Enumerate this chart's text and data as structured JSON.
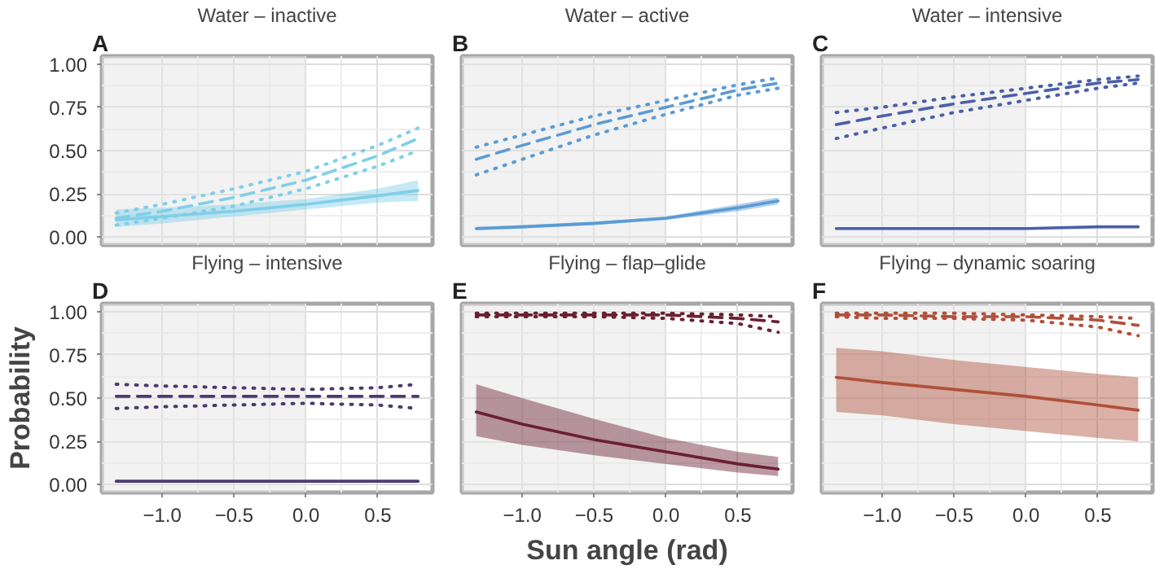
{
  "chart_data": [
    {
      "type": "line",
      "title": "Water – inactive",
      "annotations": [
        "A"
      ],
      "x": [
        -1.32,
        -1.0,
        -0.5,
        0,
        0.5,
        0.78
      ],
      "xlim": [
        -1.42,
        0.88
      ],
      "ylim": [
        -0.045,
        1.045
      ],
      "xticks": [
        -1,
        -0.5,
        0,
        0.5
      ],
      "yticks": [
        {
          "value": 0,
          "label": "0.00"
        },
        {
          "value": 0.25,
          "label": "0.25"
        },
        {
          "value": 0.5,
          "label": "0.50"
        },
        {
          "value": 0.75,
          "label": "0.75"
        },
        {
          "value": 1,
          "label": "1.00"
        }
      ],
      "tick_labels": "y",
      "grid": true,
      "bands": [
        {
          "axis": "x",
          "from": -1.42,
          "to": 0,
          "color": "#e6e6e6"
        }
      ],
      "series": [
        {
          "color": "#7fcfe8",
          "line_style": "solid",
          "values": [
            0.1,
            0.12,
            0.15,
            0.19,
            0.24,
            0.27
          ],
          "lower": [
            0.06,
            0.08,
            0.12,
            0.16,
            0.2,
            0.21
          ],
          "upper": [
            0.16,
            0.17,
            0.19,
            0.22,
            0.28,
            0.33
          ]
        },
        {
          "color": "#7fcfe8",
          "line_style": "dashed",
          "values": [
            0.11,
            0.15,
            0.23,
            0.33,
            0.47,
            0.57
          ]
        },
        {
          "color": "#7fcfe8",
          "line_style": "dotted",
          "values": [
            0.14,
            0.19,
            0.28,
            0.38,
            0.53,
            0.63
          ]
        },
        {
          "color": "#7fcfe8",
          "line_style": "dotted",
          "values": [
            0.07,
            0.11,
            0.18,
            0.28,
            0.41,
            0.5
          ]
        }
      ]
    },
    {
      "type": "line",
      "title": "Water – active",
      "annotations": [
        "B"
      ],
      "x": [
        -1.32,
        -1.0,
        -0.5,
        0,
        0.5,
        0.78
      ],
      "xlim": [
        -1.42,
        0.88
      ],
      "ylim": [
        -0.045,
        1.045
      ],
      "xticks": [
        -1,
        -0.5,
        0,
        0.5
      ],
      "yticks": [
        0,
        0.25,
        0.5,
        0.75,
        1
      ],
      "tick_labels": false,
      "grid": true,
      "bands": [
        {
          "axis": "x",
          "from": -1.42,
          "to": 0,
          "color": "#e6e6e6"
        }
      ],
      "series": [
        {
          "color": "#5b9bd5",
          "line_style": "solid",
          "values": [
            0.05,
            0.06,
            0.08,
            0.11,
            0.17,
            0.21
          ],
          "lower": [
            0.04,
            0.05,
            0.07,
            0.1,
            0.15,
            0.19
          ],
          "upper": [
            0.06,
            0.07,
            0.09,
            0.12,
            0.19,
            0.23
          ]
        },
        {
          "color": "#5b9bd5",
          "line_style": "dashed",
          "values": [
            0.45,
            0.53,
            0.65,
            0.75,
            0.85,
            0.89
          ]
        },
        {
          "color": "#5b9bd5",
          "line_style": "dotted",
          "values": [
            0.52,
            0.59,
            0.7,
            0.79,
            0.88,
            0.92
          ]
        },
        {
          "color": "#5b9bd5",
          "line_style": "dotted",
          "values": [
            0.36,
            0.45,
            0.59,
            0.71,
            0.82,
            0.86
          ]
        }
      ]
    },
    {
      "type": "line",
      "title": "Water – intensive",
      "annotations": [
        "C"
      ],
      "x": [
        -1.32,
        -1.0,
        -0.5,
        0,
        0.5,
        0.78
      ],
      "xlim": [
        -1.42,
        0.88
      ],
      "ylim": [
        -0.045,
        1.045
      ],
      "xticks": [
        -1,
        -0.5,
        0,
        0.5
      ],
      "yticks": [
        0,
        0.25,
        0.5,
        0.75,
        1
      ],
      "tick_labels": false,
      "grid": true,
      "bands": [
        {
          "axis": "x",
          "from": -1.42,
          "to": 0,
          "color": "#e6e6e6"
        }
      ],
      "series": [
        {
          "color": "#4a5fa8",
          "line_style": "solid",
          "values": [
            0.05,
            0.05,
            0.05,
            0.05,
            0.06,
            0.06
          ]
        },
        {
          "color": "#4a5fa8",
          "line_style": "dashed",
          "values": [
            0.65,
            0.7,
            0.77,
            0.83,
            0.89,
            0.91
          ]
        },
        {
          "color": "#4a5fa8",
          "line_style": "dotted",
          "values": [
            0.72,
            0.75,
            0.81,
            0.86,
            0.91,
            0.93
          ]
        },
        {
          "color": "#4a5fa8",
          "line_style": "dotted",
          "values": [
            0.57,
            0.63,
            0.72,
            0.79,
            0.86,
            0.89
          ]
        }
      ]
    },
    {
      "type": "line",
      "title": "Flying – intensive",
      "annotations": [
        "D"
      ],
      "ylabel": "Probability",
      "x": [
        -1.32,
        -1.0,
        -0.5,
        0,
        0.5,
        0.78
      ],
      "xlim": [
        -1.42,
        0.88
      ],
      "ylim": [
        -0.045,
        1.045
      ],
      "xticks": [
        {
          "value": -1,
          "label": "−1.0"
        },
        {
          "value": -0.5,
          "label": "−0.5"
        },
        {
          "value": 0,
          "label": "0.0"
        },
        {
          "value": 0.5,
          "label": "0.5"
        }
      ],
      "yticks": [
        {
          "value": 0,
          "label": "0.00"
        },
        {
          "value": 0.25,
          "label": "0.25"
        },
        {
          "value": 0.5,
          "label": "0.50"
        },
        {
          "value": 0.75,
          "label": "0.75"
        },
        {
          "value": 1,
          "label": "1.00"
        }
      ],
      "grid": true,
      "bands": [
        {
          "axis": "x",
          "from": -1.42,
          "to": 0,
          "color": "#e6e6e6"
        }
      ],
      "series": [
        {
          "color": "#4b3a6e",
          "line_style": "solid",
          "values": [
            0.02,
            0.02,
            0.02,
            0.02,
            0.02,
            0.02
          ]
        },
        {
          "color": "#4b3a6e",
          "line_style": "dashed",
          "values": [
            0.51,
            0.51,
            0.51,
            0.51,
            0.51,
            0.51
          ]
        },
        {
          "color": "#4b3a6e",
          "line_style": "dotted",
          "values": [
            0.58,
            0.57,
            0.56,
            0.55,
            0.56,
            0.58
          ]
        },
        {
          "color": "#4b3a6e",
          "line_style": "dotted",
          "values": [
            0.44,
            0.45,
            0.46,
            0.47,
            0.46,
            0.44
          ]
        }
      ]
    },
    {
      "type": "line",
      "title": "Flying – flap–glide",
      "annotations": [
        "E"
      ],
      "xlabel": "Sun angle (rad)",
      "x": [
        -1.32,
        -1.0,
        -0.5,
        0,
        0.5,
        0.78
      ],
      "xlim": [
        -1.42,
        0.88
      ],
      "ylim": [
        -0.045,
        1.045
      ],
      "xticks": [
        {
          "value": -1,
          "label": "−1.0"
        },
        {
          "value": -0.5,
          "label": "−0.5"
        },
        {
          "value": 0,
          "label": "0.0"
        },
        {
          "value": 0.5,
          "label": "0.5"
        }
      ],
      "yticks": [
        0,
        0.25,
        0.5,
        0.75,
        1
      ],
      "tick_labels": "x",
      "grid": true,
      "bands": [
        {
          "axis": "x",
          "from": -1.42,
          "to": 0,
          "color": "#e6e6e6"
        }
      ],
      "series": [
        {
          "color": "#6b1f32",
          "line_style": "solid",
          "values": [
            0.42,
            0.35,
            0.26,
            0.19,
            0.12,
            0.09
          ],
          "lower": [
            0.28,
            0.23,
            0.17,
            0.12,
            0.07,
            0.05
          ],
          "upper": [
            0.58,
            0.5,
            0.38,
            0.27,
            0.19,
            0.16
          ]
        },
        {
          "color": "#6b1f32",
          "line_style": "dashed",
          "values": [
            0.98,
            0.98,
            0.98,
            0.98,
            0.96,
            0.94
          ]
        },
        {
          "color": "#6b1f32",
          "line_style": "dotted",
          "values": [
            0.99,
            0.99,
            0.99,
            0.99,
            0.98,
            0.97
          ]
        },
        {
          "color": "#6b1f32",
          "line_style": "dotted",
          "values": [
            0.97,
            0.97,
            0.97,
            0.96,
            0.93,
            0.88
          ]
        }
      ]
    },
    {
      "type": "line",
      "title": "Flying – dynamic soaring",
      "annotations": [
        "F"
      ],
      "x": [
        -1.32,
        -1.0,
        -0.5,
        0,
        0.5,
        0.78
      ],
      "xlim": [
        -1.42,
        0.88
      ],
      "ylim": [
        -0.045,
        1.045
      ],
      "xticks": [
        {
          "value": -1,
          "label": "−1.0"
        },
        {
          "value": -0.5,
          "label": "−0.5"
        },
        {
          "value": 0,
          "label": "0.0"
        },
        {
          "value": 0.5,
          "label": "0.5"
        }
      ],
      "yticks": [
        0,
        0.25,
        0.5,
        0.75,
        1
      ],
      "tick_labels": "x",
      "grid": true,
      "bands": [
        {
          "axis": "x",
          "from": -1.42,
          "to": 0,
          "color": "#e6e6e6"
        }
      ],
      "series": [
        {
          "color": "#b0503a",
          "line_style": "solid",
          "values": [
            0.62,
            0.59,
            0.55,
            0.51,
            0.46,
            0.43
          ],
          "lower": [
            0.42,
            0.4,
            0.35,
            0.31,
            0.27,
            0.25
          ],
          "upper": [
            0.79,
            0.77,
            0.72,
            0.68,
            0.64,
            0.62
          ]
        },
        {
          "color": "#b0503a",
          "line_style": "dashed",
          "values": [
            0.98,
            0.98,
            0.97,
            0.97,
            0.95,
            0.92
          ]
        },
        {
          "color": "#b0503a",
          "line_style": "dotted",
          "values": [
            0.99,
            0.99,
            0.99,
            0.98,
            0.97,
            0.96
          ]
        },
        {
          "color": "#b0503a",
          "line_style": "dotted",
          "values": [
            0.97,
            0.96,
            0.96,
            0.95,
            0.91,
            0.86
          ]
        }
      ]
    }
  ]
}
